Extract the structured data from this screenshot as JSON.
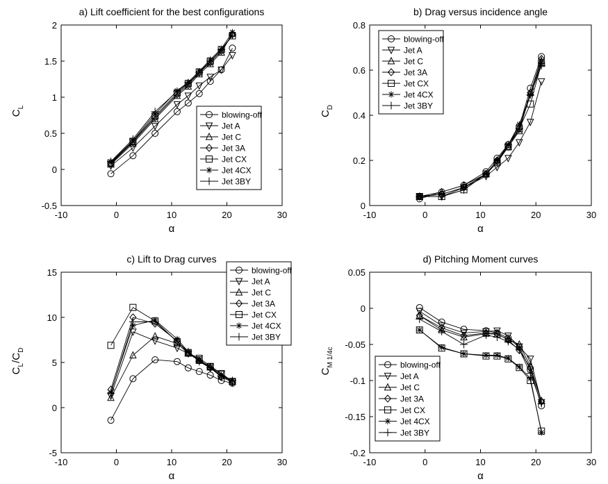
{
  "chart_data": [
    {
      "type": "line",
      "title": "a) Lift coefficient for the best configurations",
      "xlabel": "α",
      "ylabel": "C",
      "ylabel_sub": "L",
      "xlim": [
        -10,
        30
      ],
      "ylim": [
        -0.5,
        2
      ],
      "xticks": [
        -10,
        0,
        10,
        20,
        30
      ],
      "xtick_labels": [
        "-10",
        "0",
        "10",
        "20",
        "30"
      ],
      "yticks": [
        -0.5,
        0,
        0.5,
        1,
        1.5,
        2
      ],
      "ytick_labels": [
        "-0.5",
        "0",
        "0.5",
        "1",
        "1.5",
        "2"
      ],
      "grid": false,
      "legend_position": "lower-right",
      "x": [
        -1,
        3,
        7,
        11,
        13,
        15,
        17,
        19,
        21
      ],
      "series": [
        {
          "name": "blowing-off",
          "marker": "circle",
          "values": [
            -0.06,
            0.19,
            0.5,
            0.8,
            0.92,
            1.05,
            1.22,
            1.38,
            1.68
          ]
        },
        {
          "name": "Jet A",
          "marker": "triangle-down",
          "values": [
            0.05,
            0.3,
            0.6,
            0.9,
            1.02,
            1.16,
            1.28,
            1.38,
            1.58
          ]
        },
        {
          "name": "Jet C",
          "marker": "triangle-up",
          "values": [
            0.07,
            0.36,
            0.7,
            1.02,
            1.15,
            1.32,
            1.46,
            1.62,
            1.88
          ]
        },
        {
          "name": "Jet 3A",
          "marker": "diamond",
          "values": [
            0.08,
            0.38,
            0.72,
            1.04,
            1.17,
            1.34,
            1.48,
            1.64,
            1.87
          ]
        },
        {
          "name": "Jet CX",
          "marker": "square",
          "values": [
            0.09,
            0.39,
            0.74,
            1.06,
            1.19,
            1.35,
            1.5,
            1.66,
            1.85
          ]
        },
        {
          "name": "Jet 4CX",
          "marker": "asterisk",
          "values": [
            0.1,
            0.4,
            0.77,
            1.09,
            1.21,
            1.36,
            1.52,
            1.67,
            1.9
          ]
        },
        {
          "name": "Jet 3BY",
          "marker": "plus",
          "values": [
            0.11,
            0.42,
            0.8,
            1.08,
            1.2,
            1.34,
            1.5,
            1.66,
            1.86
          ]
        }
      ]
    },
    {
      "type": "line",
      "title": "b) Drag versus incidence angle",
      "xlabel": "α",
      "ylabel": "C",
      "ylabel_sub": "D",
      "xlim": [
        -10,
        30
      ],
      "ylim": [
        0,
        0.8
      ],
      "xticks": [
        -10,
        0,
        10,
        20,
        30
      ],
      "xtick_labels": [
        "-10",
        "0",
        "10",
        "20",
        "30"
      ],
      "yticks": [
        0,
        0.2,
        0.4,
        0.6,
        0.8
      ],
      "ytick_labels": [
        "0",
        "0.2",
        "0.4",
        "0.6",
        "0.8"
      ],
      "grid": false,
      "legend_position": "top-left",
      "x": [
        -1,
        3,
        7,
        11,
        13,
        15,
        17,
        19,
        21
      ],
      "series": [
        {
          "name": "blowing-off",
          "marker": "circle",
          "values": [
            0.03,
            0.06,
            0.09,
            0.15,
            0.21,
            0.27,
            0.35,
            0.52,
            0.66
          ]
        },
        {
          "name": "Jet A",
          "marker": "triangle-down",
          "values": [
            0.04,
            0.04,
            0.08,
            0.13,
            0.17,
            0.21,
            0.28,
            0.37,
            0.55
          ]
        },
        {
          "name": "Jet C",
          "marker": "triangle-up",
          "values": [
            0.04,
            0.06,
            0.09,
            0.14,
            0.2,
            0.26,
            0.33,
            0.5,
            0.64
          ]
        },
        {
          "name": "Jet 3A",
          "marker": "diamond",
          "values": [
            0.04,
            0.05,
            0.08,
            0.14,
            0.2,
            0.26,
            0.34,
            0.5,
            0.65
          ]
        },
        {
          "name": "Jet CX",
          "marker": "square",
          "values": [
            0.04,
            0.04,
            0.07,
            0.14,
            0.19,
            0.26,
            0.34,
            0.45,
            0.63
          ]
        },
        {
          "name": "Jet 4CX",
          "marker": "asterisk",
          "values": [
            0.04,
            0.05,
            0.08,
            0.14,
            0.2,
            0.27,
            0.36,
            0.49,
            0.63
          ]
        },
        {
          "name": "Jet 3BY",
          "marker": "plus",
          "values": [
            0.04,
            0.04,
            0.07,
            0.14,
            0.19,
            0.27,
            0.34,
            0.49,
            0.62
          ]
        }
      ]
    },
    {
      "type": "line",
      "title": "c) Lift to Drag curves",
      "xlabel": "α",
      "ylabel": "C",
      "ylabel_sub": "L",
      "ylabel_mid": "/C",
      "ylabel_sub2": "D",
      "xlim": [
        -10,
        30
      ],
      "ylim": [
        -5,
        15
      ],
      "xticks": [
        -10,
        0,
        10,
        20,
        30
      ],
      "xtick_labels": [
        "-10",
        "0",
        "10",
        "20",
        "30"
      ],
      "yticks": [
        -5,
        0,
        5,
        10,
        15
      ],
      "ytick_labels": [
        "-5",
        "0",
        "5",
        "10",
        "15"
      ],
      "grid": false,
      "legend_position": "top-right",
      "x": [
        -1,
        3,
        7,
        11,
        13,
        15,
        17,
        19,
        21
      ],
      "series": [
        {
          "name": "blowing-off",
          "marker": "circle",
          "values": [
            -1.4,
            3.2,
            5.3,
            5.1,
            4.4,
            4.0,
            3.6,
            3.0,
            2.7
          ]
        },
        {
          "name": "Jet A",
          "marker": "triangle-down",
          "values": [
            1.3,
            8.4,
            7.4,
            6.6,
            6.0,
            5.5,
            4.6,
            3.8,
            2.9
          ]
        },
        {
          "name": "Jet C",
          "marker": "triangle-up",
          "values": [
            1.1,
            5.8,
            7.9,
            7.1,
            6.0,
            5.2,
            4.5,
            3.5,
            2.9
          ]
        },
        {
          "name": "Jet 3A",
          "marker": "diamond",
          "values": [
            2.0,
            10.0,
            9.3,
            7.4,
            6.0,
            5.2,
            4.4,
            3.4,
            2.8
          ]
        },
        {
          "name": "Jet CX",
          "marker": "square",
          "values": [
            6.9,
            11.1,
            9.6,
            7.3,
            6.1,
            5.3,
            4.5,
            3.7,
            2.9
          ]
        },
        {
          "name": "Jet 4CX",
          "marker": "asterisk",
          "values": [
            1.7,
            9.1,
            9.7,
            7.6,
            6.2,
            5.2,
            4.4,
            3.5,
            3.0
          ]
        },
        {
          "name": "Jet 3BY",
          "marker": "plus",
          "values": [
            1.6,
            9.5,
            9.5,
            7.3,
            6.2,
            5.1,
            4.4,
            3.5,
            3.0
          ]
        }
      ]
    },
    {
      "type": "line",
      "title": "d) Pitching Moment curves",
      "xlabel": "α",
      "ylabel": "C",
      "ylabel_sub": "M 1/4c",
      "xlim": [
        -10,
        30
      ],
      "ylim": [
        -0.2,
        0.05
      ],
      "xticks": [
        -10,
        0,
        10,
        20,
        30
      ],
      "xtick_labels": [
        "-10",
        "0",
        "10",
        "20",
        "30"
      ],
      "yticks": [
        -0.2,
        -0.15,
        -0.1,
        -0.05,
        0,
        0.05
      ],
      "ytick_labels": [
        "-0.2",
        "-0.15",
        "-0.1",
        "-0.05",
        "0",
        "0.05"
      ],
      "grid": false,
      "legend_position": "bottom-left",
      "x": [
        -1,
        3,
        7,
        11,
        13,
        15,
        17,
        19,
        21
      ],
      "series": [
        {
          "name": "blowing-off",
          "marker": "circle",
          "values": [
            0.001,
            -0.019,
            -0.029,
            -0.031,
            -0.034,
            -0.041,
            -0.054,
            -0.085,
            -0.135
          ]
        },
        {
          "name": "Jet A",
          "marker": "triangle-down",
          "values": [
            -0.004,
            -0.024,
            -0.034,
            -0.032,
            -0.031,
            -0.038,
            -0.053,
            -0.07,
            -0.13
          ]
        },
        {
          "name": "Jet C",
          "marker": "triangle-up",
          "values": [
            -0.01,
            -0.03,
            -0.04,
            -0.035,
            -0.036,
            -0.043,
            -0.05,
            -0.08,
            -0.128
          ]
        },
        {
          "name": "Jet 3A",
          "marker": "diamond",
          "values": [
            -0.01,
            -0.027,
            -0.038,
            -0.034,
            -0.035,
            -0.044,
            -0.058,
            -0.082,
            -0.129
          ]
        },
        {
          "name": "Jet CX",
          "marker": "square",
          "values": [
            -0.03,
            -0.055,
            -0.063,
            -0.066,
            -0.066,
            -0.07,
            -0.082,
            -0.1,
            -0.17
          ]
        },
        {
          "name": "Jet 4CX",
          "marker": "asterisk",
          "values": [
            -0.03,
            -0.054,
            -0.063,
            -0.065,
            -0.065,
            -0.069,
            -0.081,
            -0.097,
            -0.172
          ]
        },
        {
          "name": "Jet 3BY",
          "marker": "plus",
          "values": [
            -0.015,
            -0.032,
            -0.05,
            -0.037,
            -0.04,
            -0.046,
            -0.057,
            -0.09,
            -0.132
          ]
        }
      ]
    }
  ]
}
